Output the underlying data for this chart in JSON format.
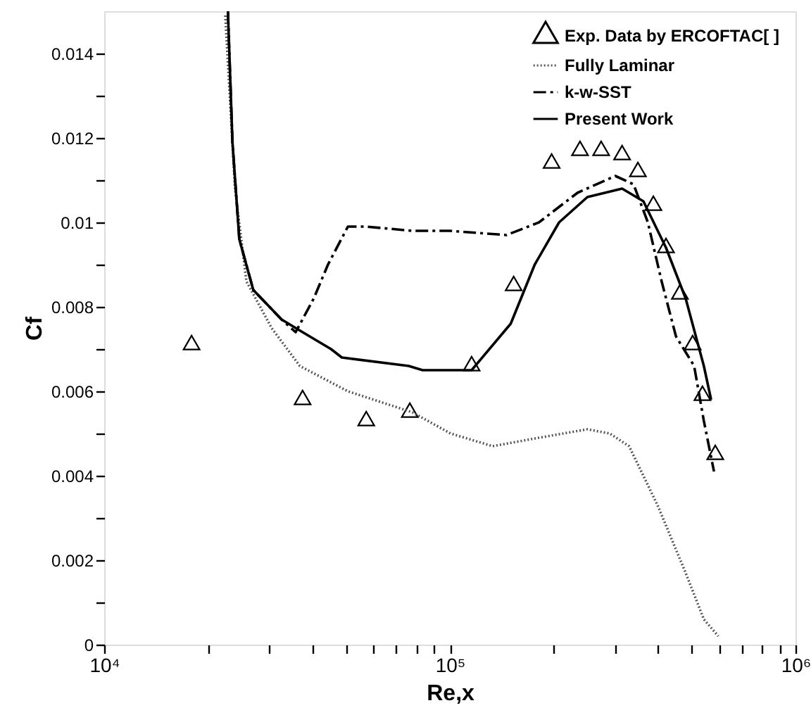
{
  "chart_data": {
    "type": "line",
    "xlabel": "Re,x",
    "ylabel": "Cf",
    "log": "x",
    "grid": false,
    "legend": "top right",
    "xlim": [
      10000,
      1000000
    ],
    "ylim": [
      0,
      0.015
    ],
    "xticks": [
      {
        "value": 10000,
        "label": "10⁴"
      },
      {
        "value": 20000,
        "label": null
      },
      {
        "value": 30000,
        "label": null
      },
      {
        "value": 40000,
        "label": null
      },
      {
        "value": 50000,
        "label": null
      },
      {
        "value": 60000,
        "label": null
      },
      {
        "value": 70000,
        "label": null
      },
      {
        "value": 80000,
        "label": null
      },
      {
        "value": 90000,
        "label": null
      },
      {
        "value": 100000,
        "label": "10⁵"
      },
      {
        "value": 200000,
        "label": null
      },
      {
        "value": 300000,
        "label": null
      },
      {
        "value": 400000,
        "label": null
      },
      {
        "value": 500000,
        "label": null
      },
      {
        "value": 600000,
        "label": null
      },
      {
        "value": 700000,
        "label": null
      },
      {
        "value": 800000,
        "label": null
      },
      {
        "value": 900000,
        "label": null
      },
      {
        "value": 1000000,
        "label": "10⁶"
      }
    ],
    "yticks": [
      0,
      {
        "value": 0.001,
        "label": null
      },
      0.002,
      {
        "value": 0.003,
        "label": null
      },
      0.004,
      {
        "value": 0.005,
        "label": null
      },
      0.006,
      {
        "value": 0.007,
        "label": null
      },
      0.008,
      {
        "value": 0.009,
        "label": null
      },
      0.01,
      {
        "value": 0.011,
        "label": null
      },
      0.012,
      {
        "value": 0.013,
        "label": null
      },
      0.014
    ],
    "series": [
      {
        "name": "Exp. Data  by ERCOFTAC[ ]",
        "type": "scatter",
        "marker": "triangle",
        "color": "#000000",
        "x": [
          17900,
          37500,
          57300,
          76600,
          115600,
          153000,
          197000,
          238000,
          274000,
          315000,
          350000,
          388000,
          422000,
          463000,
          504000,
          538000,
          586000
        ],
        "values": [
          0.0071,
          0.0058,
          0.0053,
          0.0055,
          0.0066,
          0.0085,
          0.0114,
          0.0117,
          0.0117,
          0.0116,
          0.0112,
          0.0104,
          0.0094,
          0.0083,
          0.0071,
          0.0059,
          0.0045
        ]
      },
      {
        "name": "Fully Laminar",
        "line_style": "dotted",
        "color": "#555555",
        "x": [
          22400,
          23900,
          25800,
          30500,
          36800,
          50700,
          78000,
          100500,
          133000,
          181000,
          250000,
          290000,
          330000,
          399000,
          481000,
          543000,
          598000
        ],
        "values": [
          0.0149,
          0.0108,
          0.0086,
          0.0075,
          0.0066,
          0.006,
          0.0055,
          0.005,
          0.0047,
          0.0049,
          0.0051,
          0.005,
          0.0047,
          0.0033,
          0.0017,
          0.0006,
          0.0002
        ]
      },
      {
        "name": "k-w-SST",
        "line_style": "dashed",
        "color": "#000000",
        "x": [
          22800,
          23500,
          24600,
          27000,
          32600,
          35800,
          40400,
          44400,
          50700,
          57300,
          78000,
          100000,
          146000,
          181000,
          234000,
          301000,
          340000,
          374000,
          410000,
          451000,
          509000,
          543000,
          581000
        ],
        "values": [
          0.015,
          0.0119,
          0.0096,
          0.0084,
          0.0077,
          0.0074,
          0.0082,
          0.009,
          0.0099,
          0.0099,
          0.0098,
          0.0098,
          0.0097,
          0.01,
          0.0107,
          0.0111,
          0.0109,
          0.01,
          0.0086,
          0.0073,
          0.0066,
          0.0053,
          0.0041
        ]
      },
      {
        "name": "Present Work",
        "line_style": "solid",
        "color": "#000000",
        "x": [
          22800,
          23500,
          24600,
          27000,
          32600,
          37500,
          45300,
          48700,
          76000,
          83400,
          100500,
          115600,
          150000,
          176000,
          207000,
          250000,
          315000,
          363000,
          422000,
          481000,
          543000,
          570000
        ],
        "values": [
          0.015,
          0.0119,
          0.0096,
          0.0084,
          0.0077,
          0.0074,
          0.007,
          0.0068,
          0.0066,
          0.0065,
          0.0065,
          0.0065,
          0.0076,
          0.009,
          0.01,
          0.0106,
          0.0108,
          0.0105,
          0.0094,
          0.0082,
          0.0066,
          0.0058
        ]
      }
    ]
  }
}
